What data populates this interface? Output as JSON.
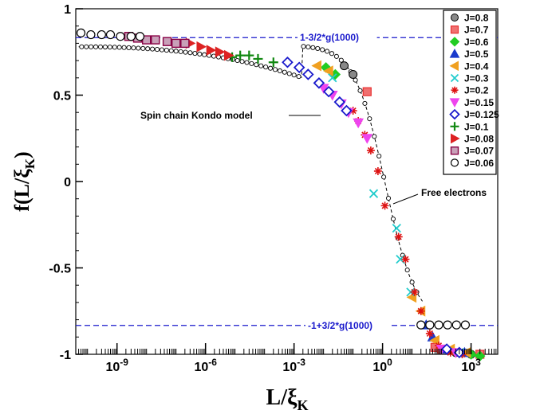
{
  "chart_data": {
    "type": "scatter",
    "x_scale": "log",
    "xlim": [
      4e-11,
      8000
    ],
    "ylim": [
      -1.0,
      1.0
    ],
    "xticks": [
      {
        "value": 1e-09,
        "label_base": "10",
        "label_exp": "-9"
      },
      {
        "value": 1e-06,
        "label_base": "10",
        "label_exp": "-6"
      },
      {
        "value": 0.001,
        "label_base": "10",
        "label_exp": "-3"
      },
      {
        "value": 1,
        "label_base": "10",
        "label_exp": "0"
      },
      {
        "value": 1000,
        "label_base": "10",
        "label_exp": "3"
      }
    ],
    "yticks": [
      {
        "value": 1,
        "label": "1"
      },
      {
        "value": 0.5,
        "label": "0.5"
      },
      {
        "value": 0,
        "label": "0"
      },
      {
        "value": -0.5,
        "label": "-0.5"
      },
      {
        "value": -1,
        "label": "-1"
      }
    ],
    "xlabel": {
      "main": "L/ξ",
      "sub": "K"
    },
    "ylabel": {
      "main": "f(L/ξ",
      "sub": "K",
      "close": ")"
    },
    "hlines": [
      {
        "y": 0.833,
        "label": "1-3/2*g(1000)",
        "color": "#1a1acc"
      },
      {
        "y": -0.833,
        "label": "-1+3/2*g(1000)",
        "color": "#1a1acc"
      }
    ],
    "annotations": [
      {
        "text": "Spin chain Kondo model",
        "x": 0.004,
        "y": 0.37,
        "anchor_x": 0.0012,
        "anchor_y": 0.375
      },
      {
        "text": "Free electrons",
        "x": 1.2,
        "y": -0.07,
        "anchor_x": 3.0,
        "anchor_y": -0.07
      }
    ],
    "legend_position": "top-right",
    "series": [
      {
        "name": "J=0.8",
        "marker": "circle-filled",
        "color": "#666666",
        "points": [
          [
            300,
            -0.99
          ],
          [
            1000,
            -1.0
          ],
          [
            0.05,
            0.67
          ],
          [
            0.1,
            0.62
          ]
        ]
      },
      {
        "name": "J=0.7",
        "marker": "square-hatched",
        "color": "#e83030",
        "points": [
          [
            0.3,
            0.52
          ],
          [
            2000,
            -1.0
          ],
          [
            60,
            -0.96
          ],
          [
            100,
            -0.97
          ]
        ]
      },
      {
        "name": "J=0.6",
        "marker": "diamond",
        "color": "#22cc22",
        "points": [
          [
            1000,
            -1.0
          ],
          [
            2000,
            -1.01
          ],
          [
            0.012,
            0.66
          ],
          [
            0.025,
            0.62
          ]
        ]
      },
      {
        "name": "J=0.5",
        "marker": "triangle-up",
        "color": "#1a3acc",
        "points": [
          [
            30,
            -0.83
          ],
          [
            50,
            -0.9
          ],
          [
            150,
            -0.97
          ],
          [
            600,
            -0.99
          ]
        ]
      },
      {
        "name": "J=0.4",
        "marker": "triangle-left",
        "color": "#f0a020",
        "points": [
          [
            10,
            -0.67
          ],
          [
            20,
            -0.75
          ],
          [
            60,
            -0.92
          ],
          [
            200,
            -0.97
          ],
          [
            700,
            -0.99
          ],
          [
            0.006,
            0.67
          ],
          [
            0.015,
            0.64
          ]
        ]
      },
      {
        "name": "J=0.3",
        "marker": "x",
        "color": "#22cccc",
        "points": [
          [
            0.5,
            -0.07
          ],
          [
            3,
            -0.27
          ],
          [
            4,
            -0.45
          ],
          [
            9,
            -0.64
          ],
          [
            0.02,
            0.6
          ],
          [
            400,
            -0.99
          ]
        ]
      },
      {
        "name": "J=0.2",
        "marker": "asterisk",
        "color": "#dd1111",
        "points": [
          [
            0.1,
            0.41
          ],
          [
            0.15,
            0.35
          ],
          [
            0.25,
            0.27
          ],
          [
            0.4,
            0.18
          ],
          [
            0.7,
            0.06
          ],
          [
            1.2,
            -0.14
          ],
          [
            3.5,
            -0.32
          ],
          [
            6,
            -0.45
          ],
          [
            12,
            -0.64
          ],
          [
            20,
            -0.75
          ],
          [
            40,
            -0.88
          ],
          [
            80,
            -0.95
          ],
          [
            200,
            -0.99
          ],
          [
            500,
            -1.0
          ]
        ]
      },
      {
        "name": "J=0.15",
        "marker": "triangle-down",
        "color": "#ee44ee",
        "points": [
          [
            0.01,
            0.54
          ],
          [
            0.02,
            0.5
          ],
          [
            0.04,
            0.45
          ],
          [
            0.07,
            0.4
          ],
          [
            0.15,
            0.34
          ],
          [
            0.3,
            0.25
          ],
          [
            100,
            -0.97
          ],
          [
            300,
            -0.99
          ]
        ]
      },
      {
        "name": "J=0.125",
        "marker": "diamond-open",
        "color": "#1a1acc",
        "points": [
          [
            0.0006,
            0.69
          ],
          [
            0.0015,
            0.66
          ],
          [
            0.003,
            0.62
          ],
          [
            0.007,
            0.57
          ],
          [
            0.015,
            0.52
          ],
          [
            0.035,
            0.46
          ],
          [
            0.06,
            0.41
          ],
          [
            150,
            -0.97
          ],
          [
            400,
            -0.99
          ]
        ]
      },
      {
        "name": "J=0.1",
        "marker": "plus",
        "color": "#118811",
        "points": [
          [
            8e-06,
            0.72
          ],
          [
            1.5e-05,
            0.73
          ],
          [
            3e-05,
            0.73
          ],
          [
            6e-05,
            0.71
          ],
          [
            0.0002,
            0.69
          ]
        ]
      },
      {
        "name": "J=0.08",
        "marker": "triangle-right",
        "color": "#dd2222",
        "points": [
          [
            3e-07,
            0.8
          ],
          [
            7e-07,
            0.78
          ],
          [
            1.5e-06,
            0.76
          ],
          [
            3e-06,
            0.75
          ],
          [
            6e-06,
            0.73
          ]
        ]
      },
      {
        "name": "J=0.07",
        "marker": "square-hatched-dark",
        "color": "#880044",
        "points": [
          [
            2.5e-09,
            0.84
          ],
          [
            5e-09,
            0.83
          ],
          [
            1e-08,
            0.82
          ],
          [
            2e-08,
            0.82
          ],
          [
            5e-08,
            0.81
          ],
          [
            1e-07,
            0.8
          ],
          [
            2e-07,
            0.8
          ]
        ]
      },
      {
        "name": "J=0.06",
        "marker": "circle-open",
        "color": "#000000",
        "points": [
          [
            6e-11,
            0.86
          ],
          [
            1.3e-10,
            0.85
          ],
          [
            3e-10,
            0.85
          ],
          [
            6e-10,
            0.85
          ],
          [
            1.3e-09,
            0.84
          ],
          [
            3e-09,
            0.84
          ],
          [
            6e-09,
            0.84
          ],
          [
            20,
            -0.83
          ],
          [
            40,
            -0.83
          ],
          [
            80,
            -0.83
          ],
          [
            160,
            -0.83
          ],
          [
            320,
            -0.83
          ],
          [
            640,
            -0.83
          ]
        ]
      }
    ]
  }
}
